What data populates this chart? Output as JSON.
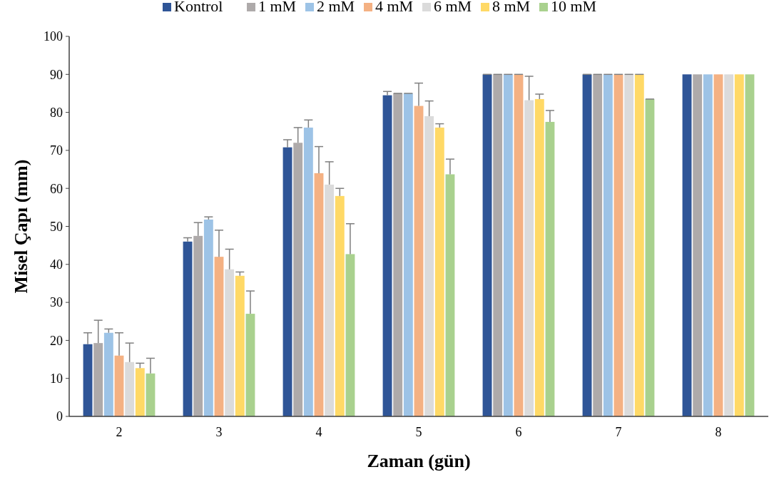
{
  "chart_data": {
    "type": "bar",
    "xlabel": "Zaman (gün)",
    "ylabel": "Misel Çapı (mm)",
    "categories": [
      "2",
      "3",
      "4",
      "5",
      "6",
      "7",
      "8"
    ],
    "ylim": [
      0,
      100
    ],
    "yticks": [
      0,
      10,
      20,
      30,
      40,
      50,
      60,
      70,
      80,
      90,
      100
    ],
    "grid": false,
    "legend": "top",
    "series": [
      {
        "name": "Kontrol",
        "color": "#2f5597",
        "values": [
          19,
          46,
          70.8,
          84.5,
          90,
          90,
          90
        ],
        "errors": [
          3,
          1,
          2,
          1,
          0,
          0,
          null
        ]
      },
      {
        "name": "1 mM",
        "color": "#aeaaaa",
        "values": [
          19.3,
          47.5,
          72,
          85,
          90,
          90,
          90
        ],
        "errors": [
          6,
          3.5,
          4,
          0,
          0,
          0,
          null
        ]
      },
      {
        "name": "2 mM",
        "color": "#9dc3e6",
        "values": [
          22,
          51.8,
          76,
          85,
          90,
          90,
          90
        ],
        "errors": [
          1,
          0.7,
          2,
          0,
          0,
          0,
          null
        ]
      },
      {
        "name": "4 mM",
        "color": "#f4b183",
        "values": [
          16,
          42,
          64,
          81.7,
          90,
          90,
          90
        ],
        "errors": [
          6,
          7,
          7,
          6,
          0,
          0,
          null
        ]
      },
      {
        "name": "6 mM",
        "color": "#dbdbdb",
        "values": [
          14.3,
          38.7,
          61,
          79,
          83.2,
          90,
          90
        ],
        "errors": [
          5,
          5.3,
          6,
          4,
          6.3,
          0,
          null
        ]
      },
      {
        "name": "8 mM",
        "color": "#ffd966",
        "values": [
          12.7,
          37,
          58,
          76,
          83.5,
          90,
          90
        ],
        "errors": [
          1.3,
          1,
          2,
          1,
          1.3,
          0,
          null
        ]
      },
      {
        "name": "10 mM",
        "color": "#a9d18e",
        "values": [
          11.3,
          27,
          42.7,
          63.7,
          77.5,
          83.5,
          90
        ],
        "errors": [
          4,
          6,
          8,
          4,
          3,
          0,
          null
        ]
      }
    ]
  }
}
